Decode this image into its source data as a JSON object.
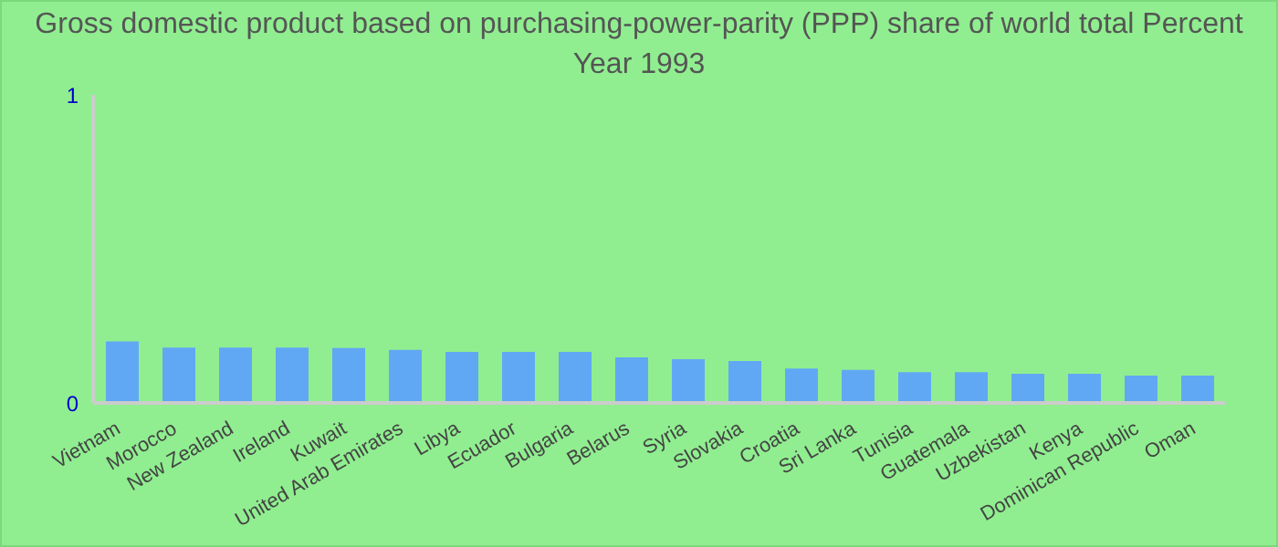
{
  "chart_data": {
    "type": "bar",
    "title": "Gross domestic product based on purchasing-power-parity (PPP) share of world total  Percent",
    "subtitle": "Year 1993",
    "categories": [
      "Vietnam",
      "Morocco",
      "New Zealand",
      "Ireland",
      "Kuwait",
      "United Arab Emirates",
      "Libya",
      "Ecuador",
      "Bulgaria",
      "Belarus",
      "Syria",
      "Slovakia",
      "Croatia",
      "Sri Lanka",
      "Tunisia",
      "Guatemala",
      "Uzbekistan",
      "Kenya",
      "Dominican Republic",
      "Oman"
    ],
    "values": [
      0.2,
      0.18,
      0.18,
      0.18,
      0.178,
      0.172,
      0.166,
      0.166,
      0.166,
      0.148,
      0.142,
      0.136,
      0.112,
      0.107,
      0.1,
      0.1,
      0.095,
      0.095,
      0.089,
      0.089
    ],
    "color": "#60a8f4",
    "ylim": [
      0,
      1
    ],
    "yticks": [
      0,
      1
    ],
    "grid": false,
    "legend": false
  }
}
